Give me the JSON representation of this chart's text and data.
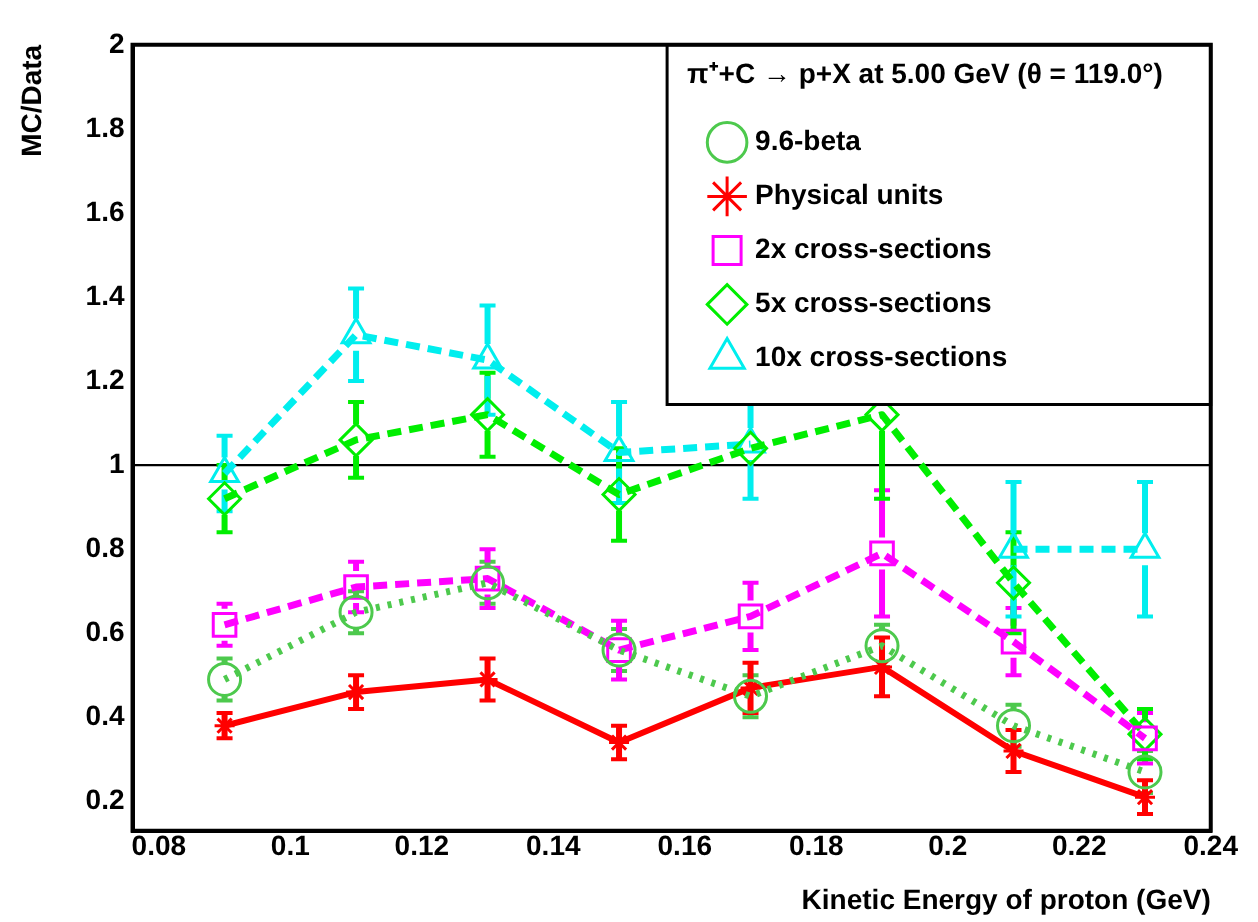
{
  "chart_data": {
    "type": "line",
    "xlabel": "Kinetic Energy of proton (GeV)",
    "ylabel": "MC/Data",
    "legend_title": "π⁺+C → p+X at 5.00 GeV (θ = 119.0°)",
    "x": [
      0.09,
      0.11,
      0.13,
      0.15,
      0.17,
      0.19,
      0.21,
      0.23
    ],
    "xlim": [
      0.076,
      0.24
    ],
    "xticks": [
      0.08,
      0.1,
      0.12,
      0.14,
      0.16,
      0.18,
      0.2,
      0.22,
      0.24
    ],
    "ylim": [
      0.13,
      2
    ],
    "yticks": [
      0.2,
      0.4,
      0.6,
      0.8,
      1,
      1.2,
      1.4,
      1.6,
      1.8,
      2
    ],
    "grid": false,
    "legend": "top right",
    "ref_lines": [
      {
        "axis": "y",
        "value": 1,
        "color": "#000000"
      }
    ],
    "series": [
      {
        "name": "9.6-beta",
        "color": "#4dc94d",
        "marker": "circle",
        "line_style": "dotted",
        "values": [
          0.49,
          0.65,
          0.72,
          0.56,
          0.45,
          0.57,
          0.38,
          0.27
        ],
        "errors": [
          0.05,
          0.05,
          0.05,
          0.05,
          0.05,
          0.05,
          0.05,
          0.05
        ]
      },
      {
        "name": "Physical units",
        "color": "#ff0000",
        "marker": "cross",
        "line_style": "solid",
        "values": [
          0.38,
          0.46,
          0.49,
          0.34,
          0.47,
          0.52,
          0.32,
          0.21
        ],
        "errors": [
          0.03,
          0.04,
          0.05,
          0.04,
          0.06,
          0.07,
          0.05,
          0.04
        ]
      },
      {
        "name": "2x cross-sections",
        "color": "#ff00ff",
        "marker": "square",
        "line_style": "dashed",
        "values": [
          0.62,
          0.71,
          0.73,
          0.56,
          0.64,
          0.79,
          0.58,
          0.35
        ],
        "errors": [
          0.05,
          0.06,
          0.07,
          0.07,
          0.08,
          0.15,
          0.08,
          0.06
        ]
      },
      {
        "name": "5x cross-sections",
        "color": "#00ee00",
        "marker": "diamond",
        "line_style": "dashed",
        "values": [
          0.92,
          1.06,
          1.12,
          0.93,
          1.04,
          1.12,
          0.72,
          0.36
        ],
        "errors": [
          0.08,
          0.09,
          0.1,
          0.11,
          null,
          0.2,
          0.12,
          0.06
        ]
      },
      {
        "name": "10x cross-sections",
        "color": "#00eeee",
        "marker": "triangle",
        "line_style": "dashed",
        "values": [
          0.98,
          1.31,
          1.25,
          1.03,
          1.05,
          null,
          0.8,
          0.8
        ],
        "errors": [
          0.09,
          0.11,
          0.13,
          0.12,
          0.13,
          null,
          0.16,
          0.16
        ]
      }
    ]
  }
}
